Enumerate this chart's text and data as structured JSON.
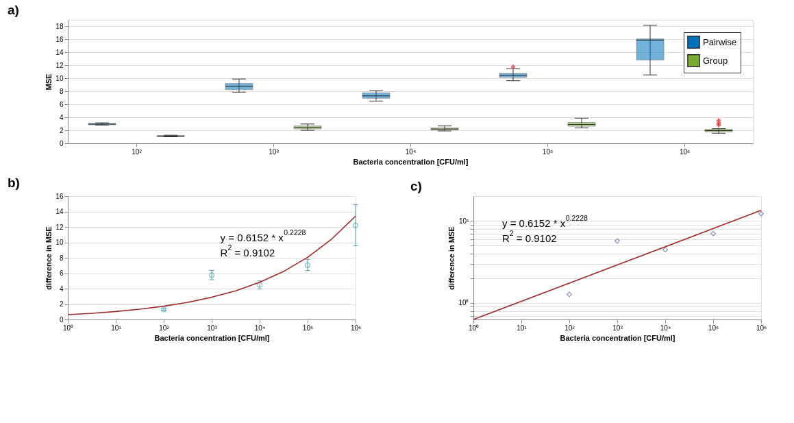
{
  "chart_data": [
    {
      "type": "box",
      "title": "a)",
      "xlabel": "Bacteria concentration [CFU/ml]",
      "ylabel": "MSE",
      "log": "x",
      "xlim": [
        31.62,
        3162278
      ],
      "xticks": [
        {
          "value": 100,
          "label": "10²"
        },
        {
          "value": 1000,
          "label": "10³"
        },
        {
          "value": 10000,
          "label": "10⁴"
        },
        {
          "value": 100000,
          "label": "10⁵"
        },
        {
          "value": 1000000,
          "label": "10⁶"
        }
      ],
      "ylim": [
        0,
        19
      ],
      "yticks": [
        0,
        2,
        4,
        6,
        8,
        10,
        12,
        14,
        16,
        18
      ],
      "grid": "y",
      "legend": "top right",
      "series": [
        {
          "name": "Pairwise",
          "color": "#0072bd",
          "x": [
            56.2,
            562,
            5623,
            56234,
            562341
          ],
          "boxes": [
            {
              "low": 2.8,
              "q1": 2.85,
              "median": 2.95,
              "q3": 3.05,
              "high": 3.15
            },
            {
              "low": 7.87,
              "q1": 8.25,
              "median": 8.77,
              "q3": 9.22,
              "high": 9.9
            },
            {
              "low": 6.5,
              "q1": 6.93,
              "median": 7.3,
              "q3": 7.76,
              "high": 8.1
            },
            {
              "low": 9.64,
              "q1": 10.14,
              "median": 10.45,
              "q3": 10.76,
              "high": 11.5,
              "outliers": [
                11.77
              ]
            },
            {
              "low": 10.53,
              "q1": 12.81,
              "median": 15.85,
              "q3": 16.07,
              "high": 18.16
            }
          ]
        },
        {
          "name": "Group",
          "color": "#77ac30",
          "x": [
            178,
            1778,
            17783,
            177828,
            1778279
          ],
          "boxes": [
            {
              "low": 1.0,
              "q1": 1.03,
              "median": 1.1,
              "q3": 1.2,
              "high": 1.25
            },
            {
              "low": 2.0,
              "q1": 2.22,
              "median": 2.45,
              "q3": 2.67,
              "high": 2.97
            },
            {
              "low": 1.9,
              "q1": 2.05,
              "median": 2.2,
              "q3": 2.36,
              "high": 2.67
            },
            {
              "low": 2.36,
              "q1": 2.63,
              "median": 2.9,
              "q3": 3.21,
              "high": 3.87
            },
            {
              "low": 1.55,
              "q1": 1.78,
              "median": 1.95,
              "q3": 2.17,
              "high": 2.25,
              "outliers": [
                2.79,
                3.1,
                3.52
              ]
            }
          ]
        }
      ]
    },
    {
      "type": "scatter",
      "title": "b)",
      "xlabel": "Bacteria concentration [CFU/ml]",
      "ylabel": "difference in MSE",
      "log": "x",
      "xlim": [
        1,
        1000000
      ],
      "xticks": [
        {
          "value": 1,
          "label": "10⁰"
        },
        {
          "value": 10,
          "label": "10¹"
        },
        {
          "value": 100,
          "label": "10²"
        },
        {
          "value": 1000,
          "label": "10³"
        },
        {
          "value": 10000,
          "label": "10⁴"
        },
        {
          "value": 100000,
          "label": "10⁵"
        },
        {
          "value": 1000000,
          "label": "10⁶"
        }
      ],
      "ylim": [
        0,
        16
      ],
      "yticks": [
        0,
        2,
        4,
        6,
        8,
        10,
        12,
        14,
        16
      ],
      "grid": "y",
      "annotations": [
        "y = 0.6152 * x$^{0.2228}$",
        "R$^{2}$ = 0.9102"
      ],
      "series": [
        {
          "type": "scatter",
          "marker": "circle",
          "color": "#4f9fa8",
          "x": [
            100,
            1000,
            10000,
            100000,
            1000000
          ],
          "values": [
            1.3,
            5.75,
            4.5,
            7.05,
            12.2
          ],
          "errors": [
            [
              1.2,
              1.4
            ],
            [
              5.15,
              6.35
            ],
            [
              3.95,
              5.0
            ],
            [
              6.35,
              7.8
            ],
            [
              9.55,
              14.9
            ]
          ]
        },
        {
          "type": "line",
          "line_style": "solid",
          "color": "#a0282a",
          "x": [
            1,
            3.162,
            10,
            31.62,
            100,
            316.2,
            1000,
            3162,
            10000,
            31623,
            100000,
            316228,
            1000000
          ],
          "values": [
            0.62,
            0.8,
            1.03,
            1.33,
            1.72,
            2.22,
            2.88,
            3.72,
            4.82,
            6.23,
            8.06,
            10.42,
            13.4
          ]
        }
      ]
    },
    {
      "type": "scatter",
      "title": "c)",
      "xlabel": "Bacteria concentration [CFU/ml]",
      "ylabel": "difference in MSE",
      "log": "xy",
      "xlim": [
        1,
        1000000
      ],
      "xticks": [
        {
          "value": 1,
          "label": "10⁰"
        },
        {
          "value": 10,
          "label": "10¹"
        },
        {
          "value": 100,
          "label": "10²"
        },
        {
          "value": 1000,
          "label": "10³"
        },
        {
          "value": 10000,
          "label": "10⁴"
        },
        {
          "value": 100000,
          "label": "10⁵"
        },
        {
          "value": 1000000,
          "label": "10⁶"
        }
      ],
      "ylim": [
        0.63,
        20
      ],
      "yticks": [
        {
          "value": 0.7,
          "label": null
        },
        {
          "value": 0.8,
          "label": null
        },
        {
          "value": 0.9,
          "label": null
        },
        {
          "value": 1,
          "label": "10⁰"
        },
        {
          "value": 2,
          "label": null
        },
        {
          "value": 3,
          "label": null
        },
        {
          "value": 4,
          "label": null
        },
        {
          "value": 5,
          "label": null
        },
        {
          "value": 6,
          "label": null
        },
        {
          "value": 7,
          "label": null
        },
        {
          "value": 8,
          "label": null
        },
        {
          "value": 9,
          "label": null
        },
        {
          "value": 10,
          "label": "10¹"
        }
      ],
      "grid": "y",
      "annotations": [
        "y = 0.6152 * x$^{0.2228}$",
        "R$^{2}$ = 0.9102"
      ],
      "series": [
        {
          "type": "scatter",
          "marker": "diamond",
          "color": "#5b63a3",
          "x": [
            100,
            1000,
            10000,
            100000,
            1000000
          ],
          "values": [
            1.27,
            5.68,
            4.45,
            7.0,
            12.2
          ]
        },
        {
          "type": "line",
          "line_style": "solid",
          "color": "#a0282a",
          "x": [
            1,
            1000000
          ],
          "values": [
            0.63,
            13.4
          ]
        }
      ]
    }
  ]
}
